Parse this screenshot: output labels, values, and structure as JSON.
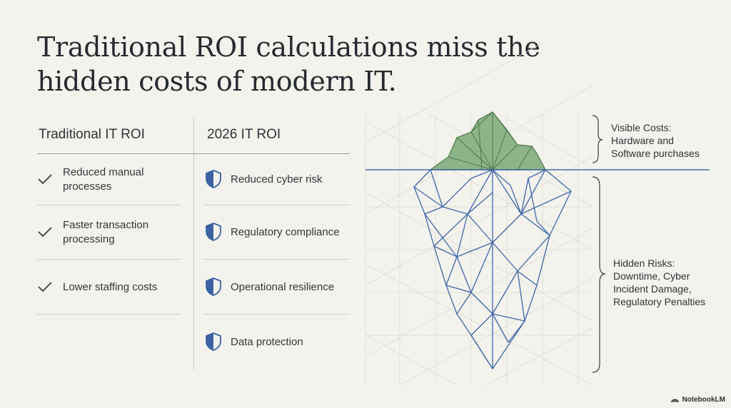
{
  "title": {
    "line1": "Traditional ROI calculations miss the",
    "line2": "hidden costs of modern IT."
  },
  "left_column": {
    "heading": "Traditional IT ROI",
    "items": [
      {
        "line1": "Reduced manual",
        "line2": "processes",
        "icon": "checkmark-icon"
      },
      {
        "line1": "Faster transaction",
        "line2": "processing",
        "icon": "checkmark-icon"
      },
      {
        "line1": "Lower staffing costs",
        "line2": "",
        "icon": "checkmark-icon"
      }
    ]
  },
  "right_column": {
    "heading": "2026 IT ROI",
    "items": [
      {
        "label": "Reduced cyber risk",
        "icon": "shield-icon"
      },
      {
        "label": "Regulatory compliance",
        "icon": "shield-icon"
      },
      {
        "label": "Operational resilience",
        "icon": "shield-icon"
      },
      {
        "label": "Data protection",
        "icon": "shield-icon"
      }
    ]
  },
  "iceberg": {
    "visible": {
      "line1": "Visible Costs:",
      "line2": "Hardware and",
      "line3": "Software purchases"
    },
    "hidden": {
      "line1": "Hidden Risks:",
      "line2": "Downtime, Cyber",
      "line3": "Incident Damage,",
      "line4": "Regulatory Penalties"
    },
    "colors": {
      "tip": "#8db388",
      "body_stroke": "#3f66a8",
      "waterline": "#4a6fa8",
      "grid": "#dcdcd4"
    }
  },
  "brand": {
    "label": "NotebookLM"
  }
}
